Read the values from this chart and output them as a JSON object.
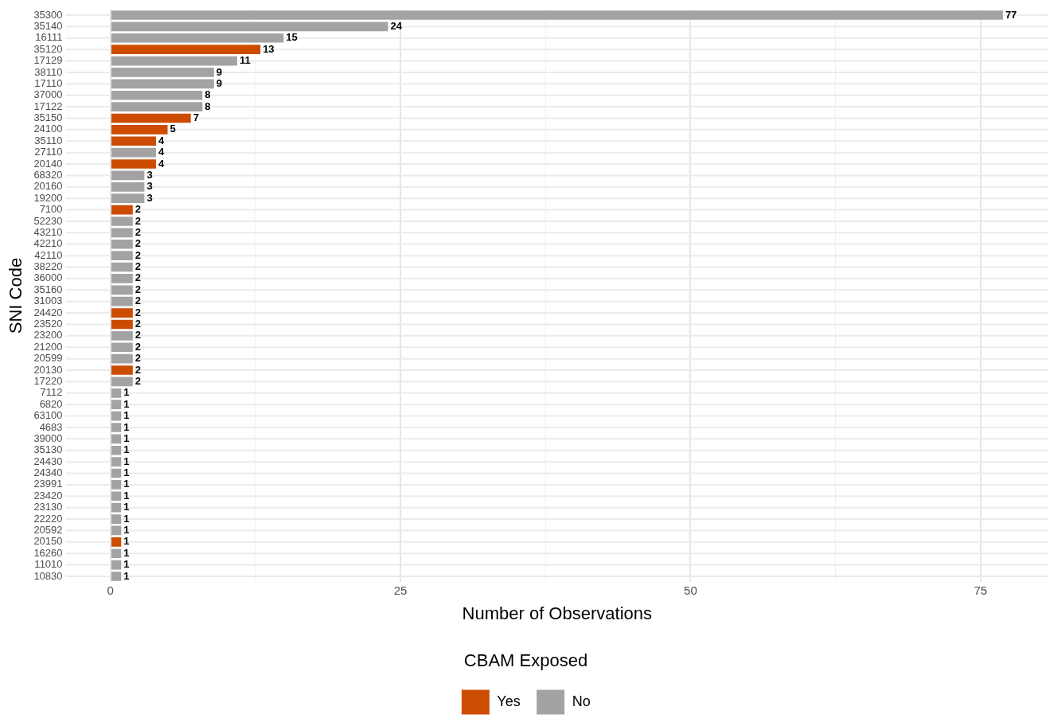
{
  "chart_data": {
    "type": "bar",
    "orientation": "horizontal",
    "xlabel": "Number of Observations",
    "ylabel": "SNI Code",
    "legend_title": "CBAM Exposed",
    "legend": "bottom",
    "grid": true,
    "data_labels": true,
    "categories": [
      "35300",
      "35140",
      "16111",
      "35120",
      "17129",
      "38110",
      "17110",
      "37000",
      "17122",
      "35150",
      "24100",
      "35110",
      "27110",
      "20140",
      "68320",
      "20160",
      "19200",
      "7100",
      "52230",
      "43210",
      "42210",
      "42110",
      "38220",
      "36000",
      "35160",
      "31003",
      "24420",
      "23520",
      "23200",
      "21200",
      "20599",
      "20130",
      "17220",
      "7112",
      "6820",
      "63100",
      "4683",
      "39000",
      "35130",
      "24430",
      "24340",
      "23991",
      "23420",
      "23130",
      "22220",
      "20592",
      "20150",
      "16260",
      "11010",
      "10830"
    ],
    "xlim": [
      -3.85,
      80.85
    ],
    "xticks": [
      0,
      {
        "value": 12.5,
        "label": null
      },
      25,
      {
        "value": 37.5,
        "label": null
      },
      50,
      {
        "value": 62.5,
        "label": null
      },
      75
    ],
    "series": [
      {
        "name": "Yes",
        "color": "#cc4c02",
        "values": [
          null,
          null,
          null,
          13,
          null,
          null,
          null,
          null,
          null,
          7,
          5,
          4,
          null,
          4,
          null,
          null,
          null,
          2,
          null,
          null,
          null,
          null,
          null,
          null,
          null,
          null,
          2,
          2,
          null,
          null,
          null,
          2,
          null,
          null,
          null,
          null,
          null,
          null,
          null,
          null,
          null,
          null,
          null,
          null,
          null,
          null,
          1,
          null,
          null,
          null
        ]
      },
      {
        "name": "No",
        "color": "#a3a3a3",
        "values": [
          77,
          24,
          15,
          null,
          11,
          9,
          9,
          8,
          8,
          null,
          null,
          null,
          4,
          null,
          3,
          3,
          3,
          null,
          2,
          2,
          2,
          2,
          2,
          2,
          2,
          2,
          null,
          null,
          2,
          2,
          2,
          null,
          2,
          1,
          1,
          1,
          1,
          1,
          1,
          1,
          1,
          1,
          1,
          1,
          1,
          1,
          null,
          1,
          1,
          1
        ]
      }
    ]
  }
}
